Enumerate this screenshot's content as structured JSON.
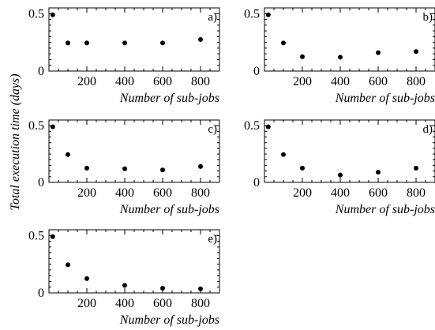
{
  "chart_data": [
    {
      "type": "scatter",
      "panel": "a)",
      "xlabel": "Number of sub-jobs",
      "x": [
        20,
        100,
        200,
        400,
        600,
        800
      ],
      "y": [
        0.49,
        0.245,
        0.245,
        0.245,
        0.245,
        0.275
      ],
      "xlim": [
        0,
        900
      ],
      "ylim": [
        0,
        0.55
      ],
      "xticks": [
        "200",
        "400",
        "600",
        "800"
      ],
      "yticks": [
        "0",
        "0.5"
      ]
    },
    {
      "type": "scatter",
      "panel": "b)",
      "xlabel": "Number of sub-jobs",
      "x": [
        20,
        100,
        200,
        400,
        600,
        800
      ],
      "y": [
        0.49,
        0.245,
        0.125,
        0.12,
        0.16,
        0.17
      ],
      "xlim": [
        0,
        900
      ],
      "ylim": [
        0,
        0.55
      ],
      "xticks": [
        "200",
        "400",
        "600",
        "800"
      ],
      "yticks": [
        "0",
        "0.5"
      ]
    },
    {
      "type": "scatter",
      "panel": "c)",
      "xlabel": "Number of sub-jobs",
      "x": [
        20,
        100,
        200,
        400,
        600,
        800
      ],
      "y": [
        0.49,
        0.245,
        0.125,
        0.12,
        0.11,
        0.14
      ],
      "xlim": [
        0,
        900
      ],
      "ylim": [
        0,
        0.55
      ],
      "xticks": [
        "200",
        "400",
        "600",
        "800"
      ],
      "yticks": [
        "0",
        "0.5"
      ]
    },
    {
      "type": "scatter",
      "panel": "d)",
      "xlabel": "Number of sub-jobs",
      "x": [
        20,
        100,
        200,
        400,
        600,
        800
      ],
      "y": [
        0.49,
        0.245,
        0.125,
        0.065,
        0.09,
        0.125
      ],
      "xlim": [
        0,
        900
      ],
      "ylim": [
        0,
        0.55
      ],
      "xticks": [
        "200",
        "400",
        "600",
        "800"
      ],
      "yticks": [
        "0",
        "0.5"
      ]
    },
    {
      "type": "scatter",
      "panel": "e)",
      "xlabel": "Number of sub-jobs",
      "x": [
        20,
        100,
        200,
        400,
        600,
        800
      ],
      "y": [
        0.49,
        0.245,
        0.125,
        0.065,
        0.04,
        0.035
      ],
      "xlim": [
        0,
        900
      ],
      "ylim": [
        0,
        0.55
      ],
      "xticks": [
        "200",
        "400",
        "600",
        "800"
      ],
      "yticks": [
        "0",
        "0.5"
      ]
    }
  ],
  "shared_ylabel": "Total execution time (days)",
  "marker_color": "#000000",
  "axis_color": "#000000"
}
